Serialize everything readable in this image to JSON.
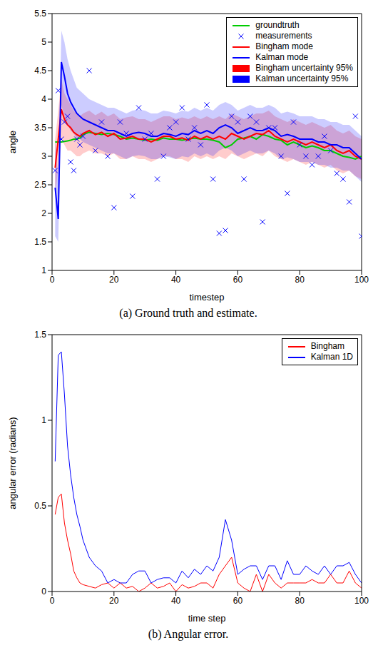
{
  "chart_data": [
    {
      "type": "line",
      "title": "(a) Ground truth and estimate.",
      "x_label": "timestep",
      "y_label": "angle",
      "legend": "top-right",
      "xlim": [
        0,
        100
      ],
      "xticks": [
        0,
        20,
        40,
        60,
        80,
        100
      ],
      "ylim": [
        1,
        5.5
      ],
      "yticks": [
        1,
        1.5,
        2,
        2.5,
        3,
        3.5,
        4,
        4.5,
        5,
        5.5
      ],
      "x": [
        1,
        2,
        3,
        4,
        5,
        6,
        7,
        8,
        9,
        10,
        12,
        14,
        16,
        18,
        20,
        22,
        24,
        26,
        28,
        30,
        32,
        34,
        36,
        38,
        40,
        42,
        44,
        46,
        48,
        50,
        52,
        54,
        56,
        58,
        60,
        62,
        64,
        66,
        68,
        70,
        72,
        74,
        76,
        78,
        80,
        82,
        84,
        86,
        88,
        90,
        92,
        94,
        96,
        98,
        100
      ],
      "series": [
        {
          "name": "groundtruth",
          "type": "line",
          "color": "#00cc00",
          "values": [
            3.25,
            3.25,
            3.25,
            3.26,
            3.27,
            3.28,
            3.3,
            3.3,
            3.32,
            3.38,
            3.42,
            3.4,
            3.38,
            3.4,
            3.38,
            3.35,
            3.3,
            3.32,
            3.3,
            3.28,
            3.3,
            3.28,
            3.32,
            3.3,
            3.3,
            3.28,
            3.3,
            3.32,
            3.3,
            3.3,
            3.28,
            3.25,
            3.15,
            3.2,
            3.3,
            3.32,
            3.35,
            3.3,
            3.38,
            3.35,
            3.3,
            3.28,
            3.2,
            3.25,
            3.2,
            3.15,
            3.18,
            3.15,
            3.1,
            3.1,
            3.05,
            3.0,
            2.98,
            2.95,
            3.0
          ]
        },
        {
          "name": "measurements",
          "type": "scatter",
          "marker": "x",
          "color": "#0000ff",
          "values": [
            2.75,
            4.15,
            3.3,
            3.6,
            3.7,
            2.9,
            2.75,
            3.3,
            3.2,
            3.35,
            4.5,
            3.1,
            3.6,
            3.0,
            2.1,
            3.6,
            3.4,
            2.3,
            3.85,
            3.3,
            3.4,
            2.6,
            3.0,
            3.5,
            3.6,
            3.85,
            3.3,
            3.5,
            3.2,
            3.9,
            2.6,
            1.65,
            1.7,
            3.7,
            3.6,
            2.6,
            3.7,
            3.6,
            1.85,
            3.5,
            3.5,
            3.0,
            2.35,
            3.6,
            3.2,
            3.0,
            2.85,
            3.0,
            3.35,
            3.1,
            2.7,
            2.6,
            2.2,
            3.7,
            1.6
          ]
        },
        {
          "name": "Bingham mode",
          "type": "line",
          "color": "#ff0000",
          "values": [
            2.8,
            3.3,
            3.82,
            3.65,
            3.55,
            3.5,
            3.42,
            3.38,
            3.35,
            3.4,
            3.45,
            3.38,
            3.42,
            3.35,
            3.4,
            3.3,
            3.32,
            3.35,
            3.3,
            3.3,
            3.25,
            3.3,
            3.35,
            3.35,
            3.3,
            3.32,
            3.28,
            3.35,
            3.3,
            3.35,
            3.3,
            3.35,
            3.3,
            3.4,
            3.35,
            3.3,
            3.35,
            3.4,
            3.38,
            3.45,
            3.35,
            3.3,
            3.25,
            3.3,
            3.25,
            3.2,
            3.25,
            3.2,
            3.15,
            3.2,
            3.1,
            3.05,
            3.1,
            3.0,
            2.95
          ]
        },
        {
          "name": "Kalman mode",
          "type": "line",
          "color": "#0000ff",
          "values": [
            2.45,
            1.9,
            4.65,
            4.4,
            4.1,
            3.95,
            3.85,
            3.75,
            3.7,
            3.65,
            3.6,
            3.55,
            3.5,
            3.45,
            3.45,
            3.4,
            3.35,
            3.4,
            3.42,
            3.4,
            3.35,
            3.35,
            3.4,
            3.38,
            3.35,
            3.4,
            3.38,
            3.45,
            3.4,
            3.45,
            3.4,
            3.5,
            3.55,
            3.5,
            3.4,
            3.45,
            3.5,
            3.45,
            3.45,
            3.5,
            3.45,
            3.35,
            3.38,
            3.35,
            3.3,
            3.3,
            3.3,
            3.25,
            3.25,
            3.2,
            3.2,
            3.15,
            3.15,
            3.05,
            2.95
          ]
        },
        {
          "name": "Bingham uncertainty 95%",
          "type": "band",
          "color": "#ff0000",
          "lower": [
            2.3,
            2.8,
            3.3,
            3.2,
            3.1,
            3.1,
            3.05,
            3.0,
            3.0,
            3.05,
            3.1,
            3.05,
            3.05,
            3.0,
            3.05,
            2.95,
            2.95,
            3.0,
            2.95,
            2.95,
            2.9,
            2.95,
            3.0,
            3.0,
            2.95,
            2.95,
            2.9,
            3.0,
            2.95,
            3.0,
            2.95,
            3.0,
            2.95,
            3.05,
            3.0,
            2.95,
            3.0,
            3.05,
            3.0,
            3.1,
            3.0,
            2.95,
            2.9,
            2.95,
            2.9,
            2.85,
            2.9,
            2.85,
            2.8,
            2.85,
            2.75,
            2.7,
            2.75,
            2.65,
            2.6
          ],
          "upper": [
            3.3,
            3.8,
            4.35,
            4.1,
            4.0,
            3.9,
            3.8,
            3.75,
            3.7,
            3.75,
            3.8,
            3.72,
            3.78,
            3.7,
            3.75,
            3.65,
            3.68,
            3.7,
            3.65,
            3.65,
            3.6,
            3.65,
            3.7,
            3.7,
            3.65,
            3.68,
            3.65,
            3.7,
            3.65,
            3.7,
            3.65,
            3.7,
            3.65,
            3.75,
            3.7,
            3.65,
            3.7,
            3.75,
            3.75,
            3.8,
            3.7,
            3.65,
            3.6,
            3.65,
            3.6,
            3.55,
            3.6,
            3.55,
            3.5,
            3.55,
            3.45,
            3.4,
            3.45,
            3.35,
            3.3
          ]
        },
        {
          "name": "Kalman uncertainty 95%",
          "type": "band",
          "color": "#0000ff",
          "lower": [
            1.6,
            1.5,
            3.9,
            3.7,
            3.55,
            3.45,
            3.4,
            3.3,
            3.3,
            3.25,
            3.2,
            3.15,
            3.1,
            3.05,
            3.05,
            3.0,
            2.95,
            3.0,
            3.02,
            3.0,
            2.95,
            2.95,
            3.0,
            2.98,
            2.95,
            3.0,
            2.98,
            3.05,
            3.0,
            3.05,
            3.0,
            3.1,
            3.15,
            3.1,
            3.0,
            3.05,
            3.1,
            3.05,
            3.05,
            3.1,
            3.05,
            2.95,
            2.98,
            2.95,
            2.9,
            2.9,
            2.9,
            2.85,
            2.85,
            2.8,
            2.8,
            2.75,
            2.75,
            2.65,
            2.55
          ],
          "upper": [
            3.3,
            2.6,
            5.2,
            5.0,
            4.7,
            4.5,
            4.35,
            4.2,
            4.15,
            4.1,
            4.0,
            3.95,
            3.9,
            3.85,
            3.85,
            3.8,
            3.75,
            3.8,
            3.82,
            3.8,
            3.75,
            3.75,
            3.8,
            3.78,
            3.75,
            3.8,
            3.78,
            3.85,
            3.8,
            3.85,
            3.8,
            3.9,
            3.95,
            3.9,
            3.8,
            3.85,
            3.9,
            3.85,
            3.85,
            3.9,
            3.85,
            3.75,
            3.78,
            3.75,
            3.7,
            3.7,
            3.7,
            3.65,
            3.65,
            3.6,
            3.6,
            3.55,
            3.55,
            3.45,
            3.35
          ]
        }
      ]
    },
    {
      "type": "line",
      "title": "(b) Angular error.",
      "x_label": "time step",
      "y_label": "angular error (radians)",
      "legend": "top-right",
      "xlim": [
        0,
        100
      ],
      "xticks": [
        0,
        20,
        40,
        60,
        80,
        100
      ],
      "ylim": [
        0,
        1.5
      ],
      "yticks": [
        0,
        0.5,
        1,
        1.5
      ],
      "x": [
        1,
        2,
        3,
        4,
        5,
        6,
        7,
        8,
        9,
        10,
        12,
        14,
        16,
        18,
        20,
        22,
        24,
        26,
        28,
        30,
        32,
        34,
        36,
        38,
        40,
        42,
        44,
        46,
        48,
        50,
        52,
        54,
        56,
        58,
        60,
        62,
        64,
        66,
        68,
        70,
        72,
        74,
        76,
        78,
        80,
        82,
        84,
        86,
        88,
        90,
        92,
        94,
        96,
        98,
        100
      ],
      "series": [
        {
          "name": "Bingham",
          "type": "line",
          "color": "#ff0000",
          "values": [
            0.45,
            0.55,
            0.57,
            0.4,
            0.3,
            0.22,
            0.12,
            0.08,
            0.05,
            0.04,
            0.03,
            0.02,
            0.04,
            0.05,
            0.02,
            0.05,
            0.02,
            0.03,
            0.0,
            0.02,
            0.05,
            0.02,
            0.03,
            0.05,
            0.0,
            0.04,
            0.02,
            0.03,
            0.05,
            0.05,
            0.02,
            0.1,
            0.15,
            0.2,
            0.05,
            0.02,
            0.0,
            0.1,
            0.0,
            0.1,
            0.05,
            0.02,
            0.05,
            0.05,
            0.05,
            0.05,
            0.07,
            0.05,
            0.05,
            0.1,
            0.05,
            0.05,
            0.12,
            0.05,
            0.02
          ]
        },
        {
          "name": "Kalman 1D",
          "type": "line",
          "color": "#0000ff",
          "values": [
            0.76,
            1.38,
            1.4,
            1.15,
            0.85,
            0.68,
            0.55,
            0.45,
            0.38,
            0.3,
            0.2,
            0.15,
            0.12,
            0.05,
            0.07,
            0.05,
            0.05,
            0.1,
            0.12,
            0.12,
            0.05,
            0.07,
            0.08,
            0.08,
            0.05,
            0.12,
            0.08,
            0.13,
            0.1,
            0.15,
            0.12,
            0.2,
            0.42,
            0.3,
            0.1,
            0.13,
            0.15,
            0.15,
            0.07,
            0.15,
            0.15,
            0.07,
            0.18,
            0.1,
            0.1,
            0.15,
            0.12,
            0.1,
            0.15,
            0.1,
            0.15,
            0.15,
            0.17,
            0.1,
            0.05
          ]
        }
      ]
    }
  ]
}
